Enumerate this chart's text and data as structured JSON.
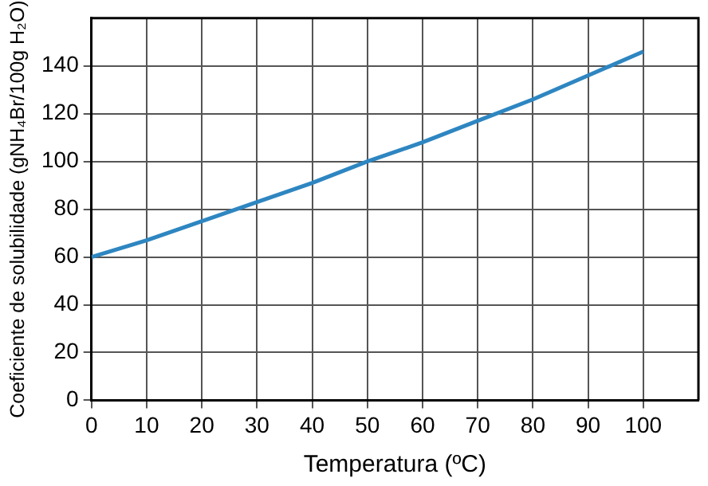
{
  "chart_data": {
    "type": "line",
    "xlabel": "Temperatura (ºC)",
    "ylabel": "Coeficiente de solubilidade (gNH₄Br/100g H₂O)",
    "x": [
      0,
      10,
      20,
      30,
      40,
      50,
      60,
      70,
      80,
      90,
      100
    ],
    "series": [
      {
        "color": "#2e86c1",
        "values": [
          60,
          67,
          75,
          83,
          91,
          100,
          108,
          117,
          126,
          136,
          146
        ]
      }
    ],
    "xlim": [
      0,
      110
    ],
    "xticks": [
      0,
      10,
      20,
      30,
      40,
      50,
      60,
      70,
      80,
      90,
      100
    ],
    "ylim": [
      0,
      160
    ],
    "yticks": [
      0,
      20,
      40,
      60,
      80,
      100,
      120,
      140
    ],
    "grid": true,
    "legend": false,
    "marker": "none",
    "line_style": "solid"
  }
}
